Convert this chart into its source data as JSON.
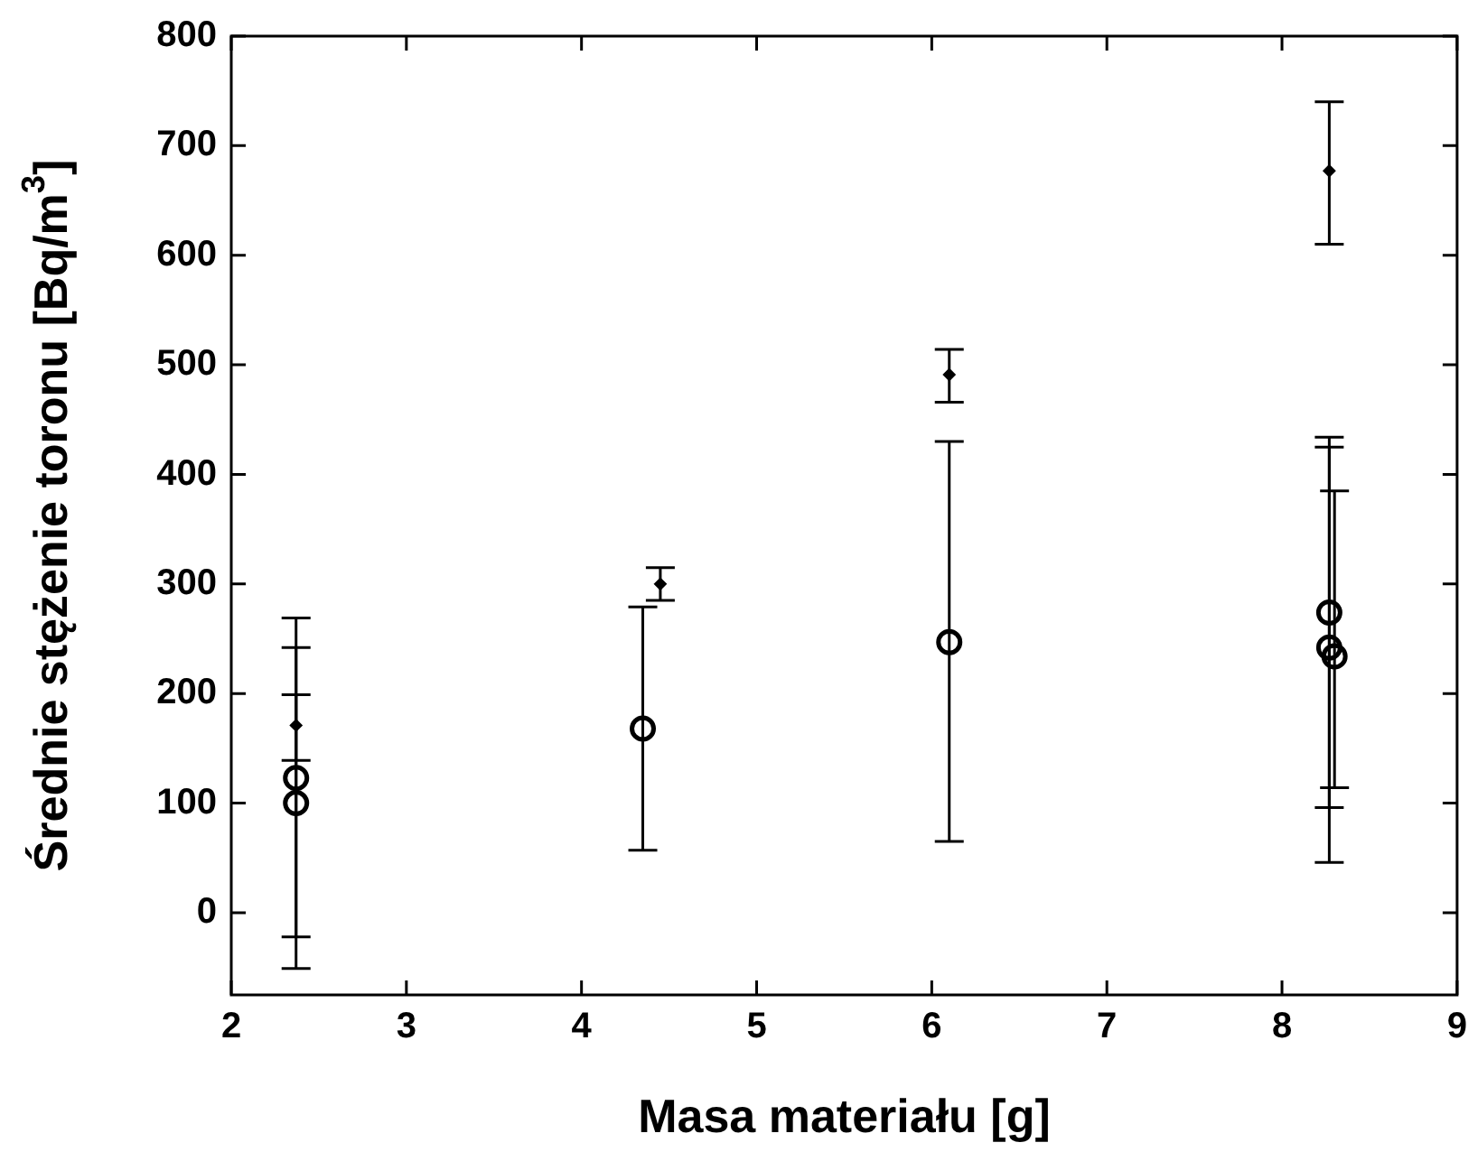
{
  "chart_data": {
    "type": "scatter",
    "xlabel": "Masa materiału [g]",
    "ylabel": "Średnie stężenie toronu [Bq/m$^{3}$]",
    "xlim": [
      2,
      9
    ],
    "xticks": [
      2,
      3,
      4,
      5,
      6,
      7,
      8,
      9
    ],
    "ylim": [
      -75,
      800
    ],
    "yticks": [
      0,
      100,
      200,
      300,
      400,
      500,
      600,
      700,
      800
    ],
    "grid": false,
    "legend": false,
    "series": [
      {
        "color": "#000000",
        "marker": "circle",
        "x": [
          2.37,
          2.37,
          4.35,
          6.1,
          8.27,
          8.27,
          8.3
        ],
        "values": [
          123,
          100,
          168,
          247,
          274,
          242,
          234
        ],
        "errors": [
          [
            -22,
            269
          ],
          [
            -51,
            242
          ],
          [
            57,
            279
          ],
          [
            65,
            430
          ],
          [
            96,
            434
          ],
          [
            46,
            425
          ],
          [
            114,
            385
          ]
        ]
      },
      {
        "color": "#000000",
        "marker": "diamond",
        "x": [
          2.37,
          4.45,
          6.1,
          8.27
        ],
        "values": [
          171,
          300,
          491,
          677
        ],
        "errors": [
          [
            139,
            199
          ],
          [
            285,
            315
          ],
          [
            466,
            514
          ],
          [
            610,
            740
          ]
        ]
      }
    ]
  }
}
